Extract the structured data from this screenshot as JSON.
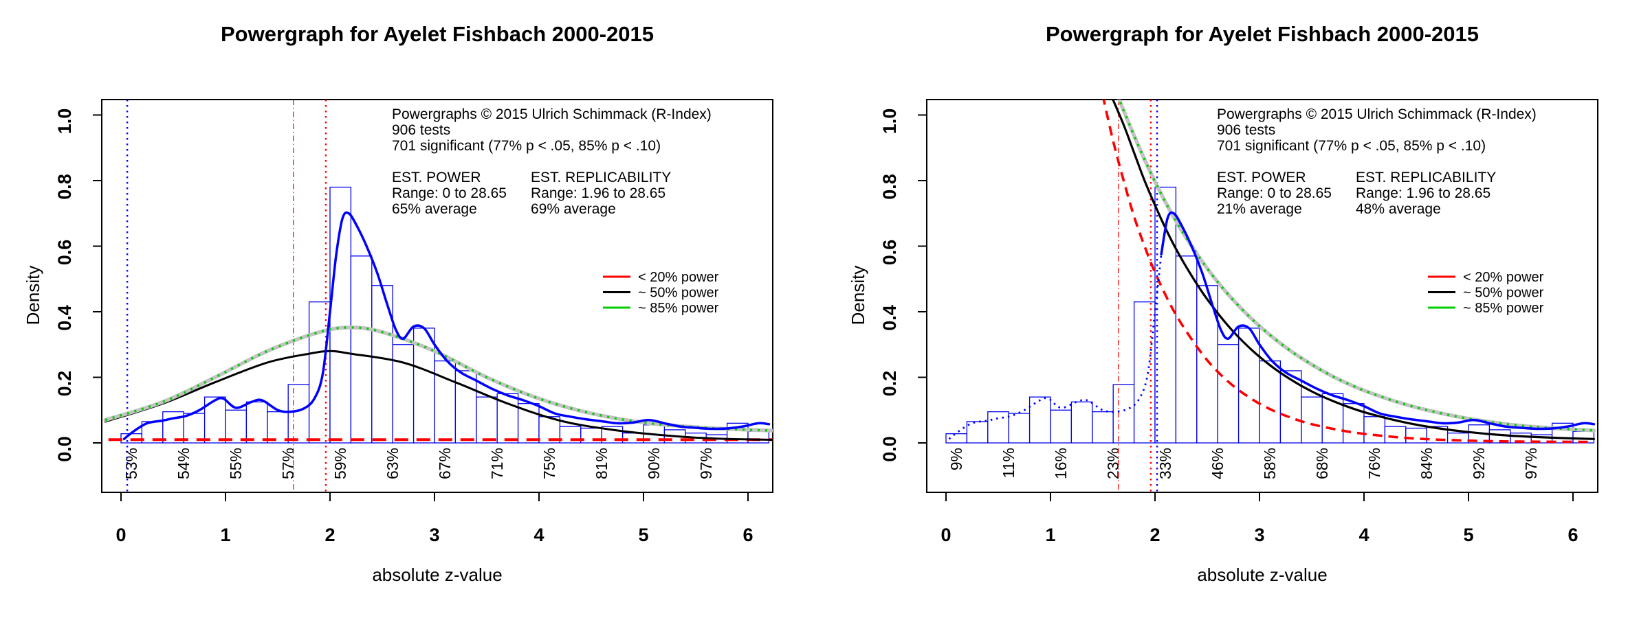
{
  "chart_data": {
    "type": "bar",
    "subtype": "histogram-with-density-curves",
    "title": "Powergraph for Ayelet Fishbach 2000-2015",
    "xlabel": "absolute z-value",
    "ylabel": "Density",
    "x_ticks": [
      0,
      1,
      2,
      3,
      4,
      5,
      6
    ],
    "y_ticks": [
      "0.0",
      "0.2",
      "0.4",
      "0.6",
      "0.8",
      "1.0"
    ],
    "xlim": [
      0,
      6.2
    ],
    "ylim": [
      0,
      1.04
    ],
    "grid": false,
    "bin_start": 0,
    "bin_width": 0.2,
    "histogram_densities": [
      0.028,
      0.065,
      0.095,
      0.09,
      0.14,
      0.1,
      0.125,
      0.095,
      0.178,
      0.43,
      0.78,
      0.57,
      0.48,
      0.3,
      0.35,
      0.25,
      0.22,
      0.14,
      0.15,
      0.12,
      0.08,
      0.05,
      0.045,
      0.05,
      0.03,
      0.055,
      0.04,
      0.03,
      0.025,
      0.06,
      0.035
    ],
    "observed_density_curve": [
      [
        0.03,
        0.012
      ],
      [
        0.12,
        0.035
      ],
      [
        0.25,
        0.06
      ],
      [
        0.4,
        0.068
      ],
      [
        0.5,
        0.075
      ],
      [
        0.62,
        0.082
      ],
      [
        0.75,
        0.1
      ],
      [
        0.9,
        0.13
      ],
      [
        0.98,
        0.135
      ],
      [
        1.1,
        0.107
      ],
      [
        1.25,
        0.125
      ],
      [
        1.35,
        0.13
      ],
      [
        1.5,
        0.1
      ],
      [
        1.62,
        0.095
      ],
      [
        1.75,
        0.105
      ],
      [
        1.85,
        0.135
      ],
      [
        1.93,
        0.21
      ],
      [
        2.0,
        0.4
      ],
      [
        2.06,
        0.575
      ],
      [
        2.12,
        0.685
      ],
      [
        2.18,
        0.7
      ],
      [
        2.26,
        0.66
      ],
      [
        2.35,
        0.6
      ],
      [
        2.45,
        0.52
      ],
      [
        2.55,
        0.42
      ],
      [
        2.63,
        0.345
      ],
      [
        2.7,
        0.318
      ],
      [
        2.8,
        0.355
      ],
      [
        2.9,
        0.35
      ],
      [
        3.0,
        0.3
      ],
      [
        3.12,
        0.25
      ],
      [
        3.25,
        0.215
      ],
      [
        3.4,
        0.19
      ],
      [
        3.55,
        0.165
      ],
      [
        3.7,
        0.145
      ],
      [
        3.85,
        0.13
      ],
      [
        4.0,
        0.112
      ],
      [
        4.15,
        0.09
      ],
      [
        4.3,
        0.08
      ],
      [
        4.45,
        0.072
      ],
      [
        4.6,
        0.066
      ],
      [
        4.75,
        0.06
      ],
      [
        4.9,
        0.062
      ],
      [
        5.05,
        0.07
      ],
      [
        5.2,
        0.06
      ],
      [
        5.35,
        0.05
      ],
      [
        5.5,
        0.046
      ],
      [
        5.65,
        0.043
      ],
      [
        5.8,
        0.044
      ],
      [
        5.95,
        0.05
      ],
      [
        6.1,
        0.06
      ],
      [
        6.2,
        0.057
      ]
    ],
    "annotation_header": [
      "Powergraphs © 2015 Ulrich Schimmack (R-Index)",
      "906 tests",
      "701 significant (77% p < .05, 85% p < .10)"
    ],
    "legend": [
      {
        "label": "< 20% power",
        "color": "#FF0000"
      },
      {
        "label": "~ 50% power",
        "color": "#000000"
      },
      {
        "label": "~ 85% power",
        "color": "#00CE00"
      }
    ],
    "legend_position": "right-middle",
    "power_label_z_start": 0.1,
    "power_label_z_step": 0.5,
    "colors": {
      "histogram_border": "#0000EE",
      "observed": "#0000FF",
      "model_grey": "#C3C3C3",
      "red": "#FF0000",
      "black": "#000000",
      "green": "#00CE00",
      "vline_blue": "#0000FF"
    },
    "panels": [
      {
        "id": "left",
        "title": "Powergraph for Ayelet Fishbach 2000-2015",
        "power_labels": [
          "53%",
          "54%",
          "55%",
          "57%",
          "59%",
          "63%",
          "67%",
          "71%",
          "75%",
          "81%",
          "90%",
          "97%"
        ],
        "est_power": {
          "title": "EST. POWER",
          "range": "Range: 0 to 28.65",
          "average": "65% average"
        },
        "est_replicability": {
          "title": "EST. REPLICABILITY",
          "range": "Range: 1.96 to 28.65",
          "average": "69% average"
        },
        "vlines": [
          {
            "z": 0.06,
            "color": "#0000FF",
            "style": "dotted",
            "width": 2.4
          },
          {
            "z": 1.65,
            "color": "#FF0000",
            "style": "dashdot",
            "width": 1.2
          },
          {
            "z": 1.96,
            "color": "#FF0000",
            "style": "dotted",
            "width": 2.4
          }
        ],
        "curves": [
          {
            "name": "red-20-power",
            "color": "#FF0000",
            "width": 4,
            "dash": "longdash",
            "points": [
              [
                -0.12,
                0.01
              ],
              [
                6.32,
                0.01
              ]
            ]
          },
          {
            "name": "black-50-power",
            "color": "#000000",
            "width": 3,
            "smooth": true,
            "points": [
              [
                -0.15,
                0.065
              ],
              [
                0.4,
                0.12
              ],
              [
                0.9,
                0.185
              ],
              [
                1.4,
                0.245
              ],
              [
                1.8,
                0.272
              ],
              [
                2.0,
                0.28
              ],
              [
                2.2,
                0.272
              ],
              [
                2.7,
                0.245
              ],
              [
                3.2,
                0.185
              ],
              [
                3.7,
                0.12
              ],
              [
                4.2,
                0.068
              ],
              [
                4.7,
                0.04
              ],
              [
                5.2,
                0.023
              ],
              [
                5.7,
                0.013
              ],
              [
                6.3,
                0.009
              ]
            ]
          },
          {
            "name": "grey-model",
            "color": "#C3C3C3",
            "width": 5.5,
            "smooth": true,
            "points": [
              [
                -0.15,
                0.07
              ],
              [
                0.4,
                0.125
              ],
              [
                0.9,
                0.2
              ],
              [
                1.4,
                0.28
              ],
              [
                1.9,
                0.338
              ],
              [
                2.2,
                0.352
              ],
              [
                2.5,
                0.338
              ],
              [
                3.0,
                0.28
              ],
              [
                3.5,
                0.2
              ],
              [
                4.0,
                0.135
              ],
              [
                4.5,
                0.09
              ],
              [
                5.0,
                0.062
              ],
              [
                5.5,
                0.048
              ],
              [
                6.0,
                0.04
              ],
              [
                6.3,
                0.037
              ]
            ]
          },
          {
            "name": "green-85-power",
            "color": "#00CE00",
            "width": 3.4,
            "dash": "finedot",
            "smooth": true,
            "same_points_as": "grey-model"
          },
          {
            "name": "blue-observed",
            "color": "#0000FF",
            "width": 3.5,
            "smooth": true,
            "ref": "observed"
          }
        ]
      },
      {
        "id": "right",
        "title": "Powergraph for Ayelet Fishbach 2000-2015",
        "power_labels": [
          "9%",
          "11%",
          "16%",
          "23%",
          "33%",
          "46%",
          "58%",
          "68%",
          "76%",
          "84%",
          "92%",
          "97%"
        ],
        "est_power": {
          "title": "EST. POWER",
          "range": "Range: 0 to 28.65",
          "average": "21% average"
        },
        "est_replicability": {
          "title": "EST. REPLICABILITY",
          "range": "Range: 1.96 to 28.65",
          "average": "48% average"
        },
        "vlines": [
          {
            "z": 1.65,
            "color": "#FF0000",
            "style": "dashdot",
            "width": 1.2
          },
          {
            "z": 1.96,
            "color": "#FF0000",
            "style": "dotted",
            "width": 2.4
          },
          {
            "z": 2.02,
            "color": "#0000FF",
            "style": "dotted",
            "width": 2.4
          }
        ],
        "curves": [
          {
            "name": "red-20-power",
            "color": "#FF0000",
            "width": 3.6,
            "dash": "dashed",
            "smooth": true,
            "points": [
              [
                1.5,
                1.06
              ],
              [
                1.6,
                0.92
              ],
              [
                1.7,
                0.8
              ],
              [
                1.8,
                0.69
              ],
              [
                1.9,
                0.6
              ],
              [
                2.0,
                0.52
              ],
              [
                2.15,
                0.42
              ],
              [
                2.3,
                0.34
              ],
              [
                2.5,
                0.252
              ],
              [
                2.7,
                0.187
              ],
              [
                2.9,
                0.139
              ],
              [
                3.1,
                0.103
              ],
              [
                3.3,
                0.077
              ],
              [
                3.5,
                0.057
              ],
              [
                3.8,
                0.037
              ],
              [
                4.1,
                0.024
              ],
              [
                4.5,
                0.013
              ],
              [
                5.0,
                0.007
              ],
              [
                5.5,
                0.004
              ],
              [
                6.2,
                0.003
              ]
            ]
          },
          {
            "name": "black-50-power",
            "color": "#000000",
            "width": 3.2,
            "smooth": true,
            "points": [
              [
                1.58,
                1.06
              ],
              [
                1.7,
                0.97
              ],
              [
                1.8,
                0.885
              ],
              [
                1.9,
                0.8
              ],
              [
                2.0,
                0.725
              ],
              [
                2.1,
                0.655
              ],
              [
                2.2,
                0.592
              ],
              [
                2.35,
                0.51
              ],
              [
                2.5,
                0.438
              ],
              [
                2.7,
                0.357
              ],
              [
                2.9,
                0.291
              ],
              [
                3.1,
                0.237
              ],
              [
                3.3,
                0.193
              ],
              [
                3.5,
                0.157
              ],
              [
                3.7,
                0.128
              ],
              [
                3.9,
                0.104
              ],
              [
                4.1,
                0.085
              ],
              [
                4.4,
                0.062
              ],
              [
                4.7,
                0.045
              ],
              [
                5.0,
                0.033
              ],
              [
                5.4,
                0.022
              ],
              [
                5.8,
                0.016
              ],
              [
                6.2,
                0.012
              ]
            ]
          },
          {
            "name": "grey-model",
            "color": "#C3C3C3",
            "width": 5.5,
            "smooth": true,
            "points": [
              [
                1.64,
                1.06
              ],
              [
                1.75,
                0.975
              ],
              [
                1.85,
                0.9
              ],
              [
                1.95,
                0.83
              ],
              [
                2.05,
                0.765
              ],
              [
                2.15,
                0.705
              ],
              [
                2.3,
                0.625
              ],
              [
                2.5,
                0.532
              ],
              [
                2.7,
                0.453
              ],
              [
                2.9,
                0.386
              ],
              [
                3.1,
                0.329
              ],
              [
                3.3,
                0.28
              ],
              [
                3.5,
                0.239
              ],
              [
                3.7,
                0.203
              ],
              [
                3.9,
                0.173
              ],
              [
                4.1,
                0.148
              ],
              [
                4.4,
                0.117
              ],
              [
                4.7,
                0.093
              ],
              [
                5.0,
                0.074
              ],
              [
                5.4,
                0.056
              ],
              [
                5.8,
                0.045
              ],
              [
                6.2,
                0.038
              ]
            ]
          },
          {
            "name": "green-85-power",
            "color": "#00CE00",
            "width": 3.4,
            "dash": "finedot",
            "smooth": true,
            "same_points_as": "grey-model"
          },
          {
            "name": "blue-observed-nonsig",
            "color": "#0000FF",
            "width": 2.8,
            "dash": "dotted2",
            "smooth": true,
            "ref": "observed",
            "zmax": 2.06
          },
          {
            "name": "blue-observed-sig",
            "color": "#0000FF",
            "width": 3.5,
            "smooth": true,
            "ref": "observed",
            "zmin": 2.06
          }
        ]
      }
    ]
  }
}
